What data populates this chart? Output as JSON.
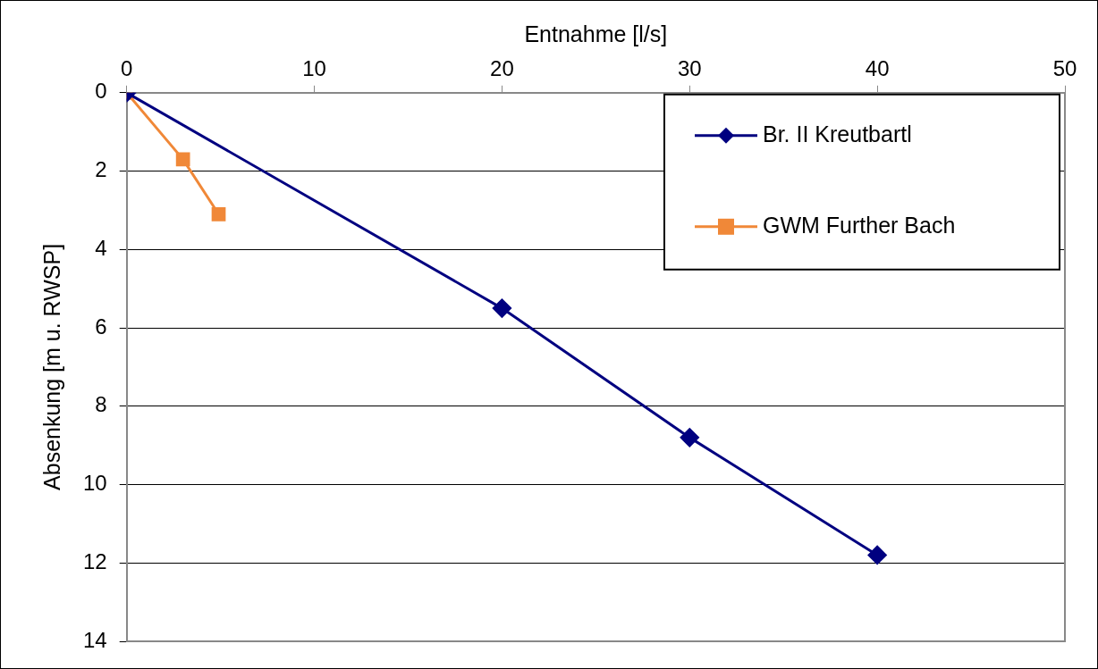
{
  "chart_data": {
    "type": "line",
    "xlabel": "Entnahme [l/s]",
    "ylabel": "Absenkung [m u. RWSP]",
    "xlim": [
      0,
      50
    ],
    "xticks": [
      0,
      10,
      20,
      30,
      40,
      50
    ],
    "ylim": [
      14,
      0
    ],
    "yticks": [
      0,
      2,
      4,
      6,
      8,
      10,
      12,
      14
    ],
    "grid": "y",
    "legend": "top right",
    "line_style": "solid",
    "series": [
      {
        "name": "Br. II Kreutbartl",
        "color": "#000080",
        "marker": "diamond",
        "x": [
          0,
          20,
          30,
          40
        ],
        "values": [
          0,
          5.5,
          8.8,
          11.8
        ]
      },
      {
        "name": "GWM Further Bach",
        "color": "#f08838",
        "marker": "square",
        "x": [
          0,
          3,
          4.9
        ],
        "values": [
          0,
          1.7,
          3.1
        ]
      }
    ]
  }
}
